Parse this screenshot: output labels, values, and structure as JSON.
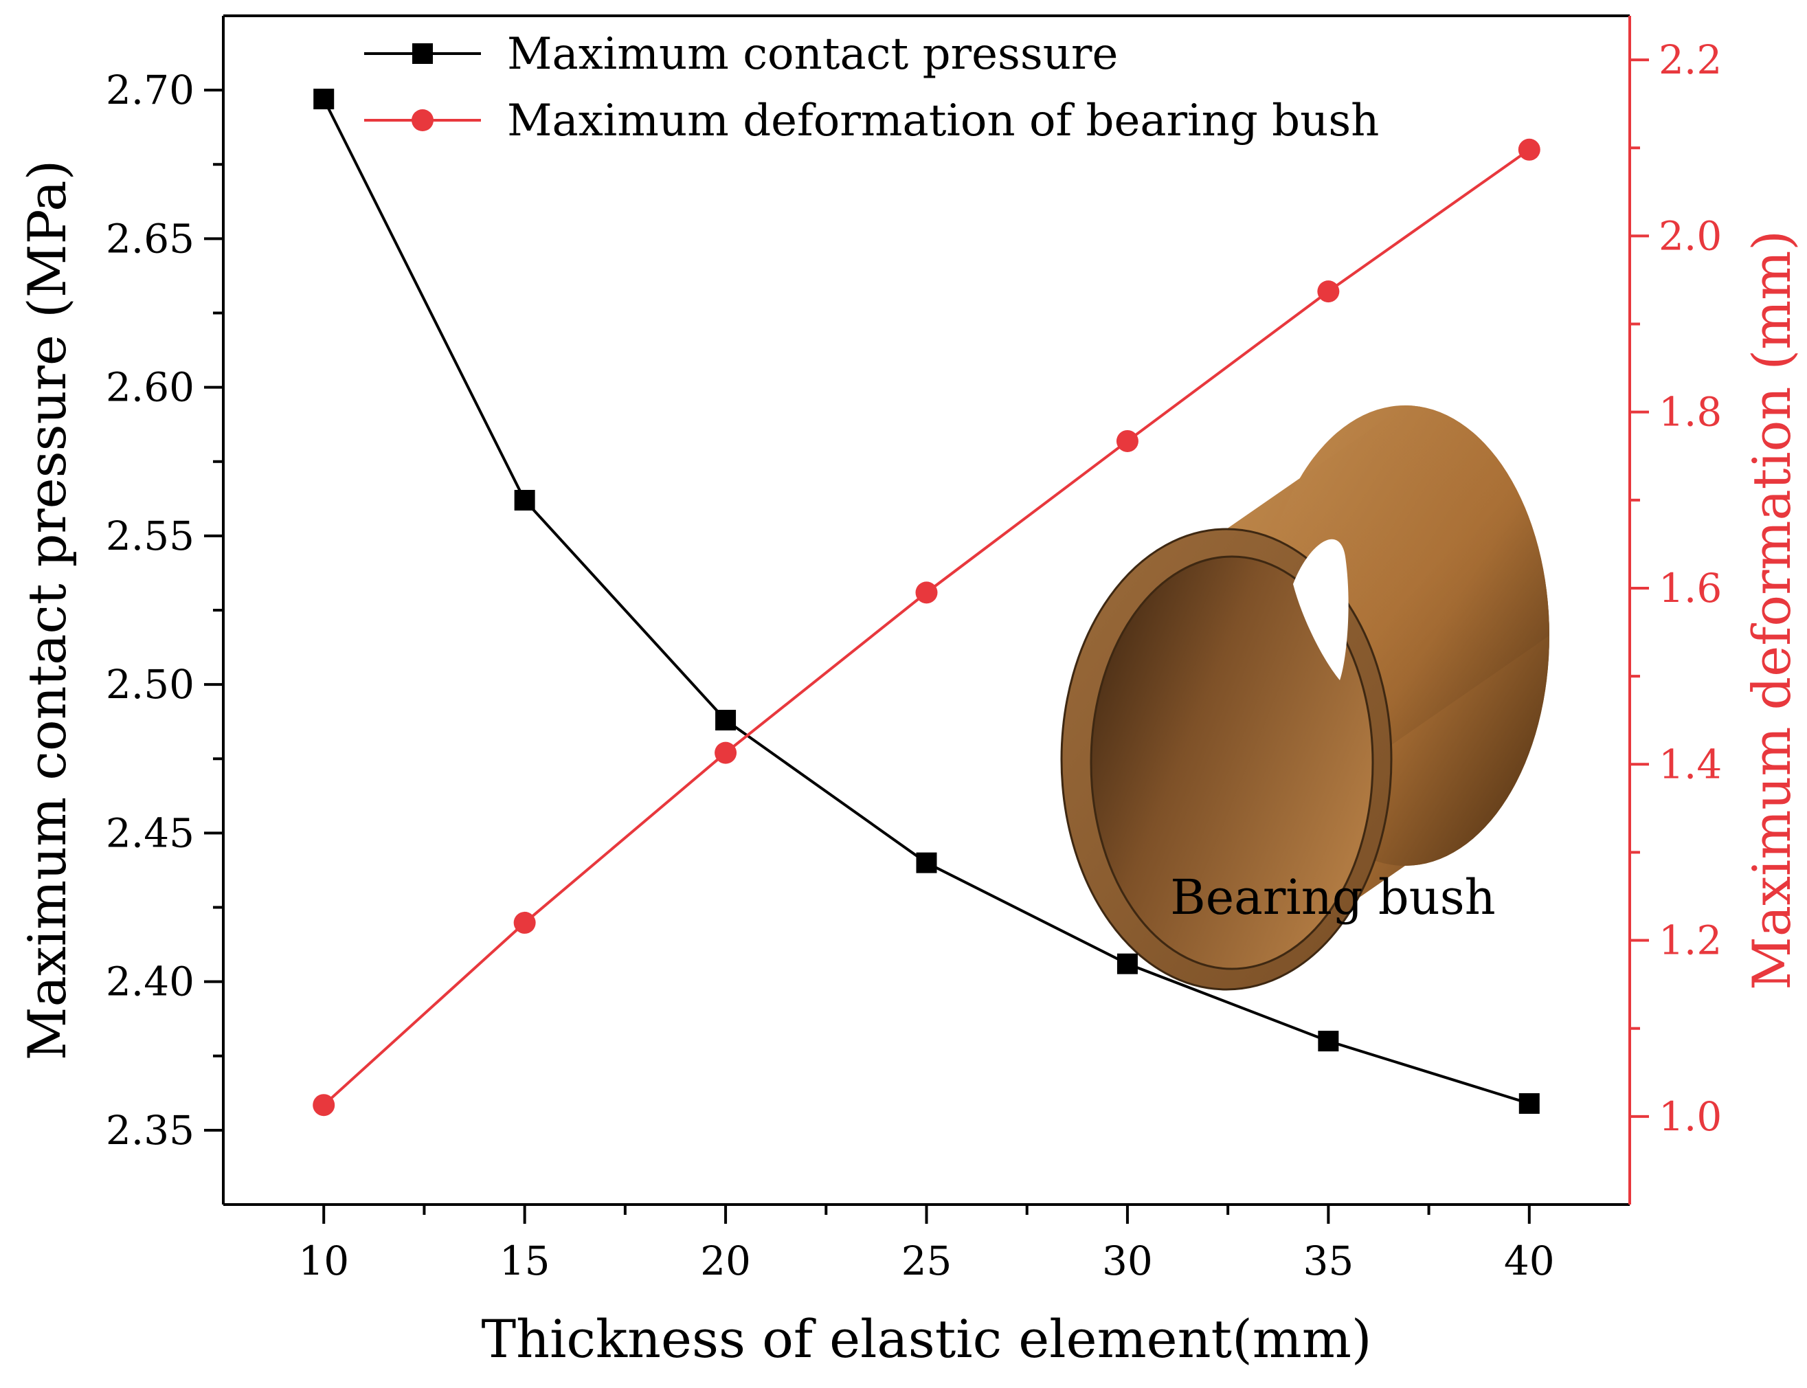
{
  "chart_data": {
    "type": "line",
    "x": [
      10,
      15,
      20,
      25,
      30,
      35,
      40
    ],
    "xlabel": "Thickness of elastic element(mm)",
    "xlim": [
      7.5,
      42.5
    ],
    "xticks": [
      "10",
      "15",
      "20",
      "25",
      "30",
      "35",
      "40"
    ],
    "ylabel": "Maximum contact pressure (MPa)",
    "ylim": [
      2.325,
      2.725
    ],
    "yticks": [
      "2.35",
      "2.40",
      "2.45",
      "2.50",
      "2.55",
      "2.60",
      "2.65",
      "2.70"
    ],
    "y2label": "Maximum deformation (mm)",
    "y2lim": [
      0.9,
      2.25
    ],
    "y2ticks": [
      "1.0",
      "1.2",
      "1.4",
      "1.6",
      "1.8",
      "2.0",
      "2.2"
    ],
    "grid": false,
    "legend_position": "top",
    "series": [
      {
        "name": "Maximum contact pressure",
        "axis": "left",
        "marker": "square",
        "color": "#000000",
        "values": [
          2.697,
          2.562,
          2.488,
          2.44,
          2.406,
          2.38,
          2.359
        ]
      },
      {
        "name": "Maximum deformation of bearing bush",
        "axis": "right",
        "marker": "circle",
        "color": "#e8383d",
        "values": [
          1.013,
          1.22,
          1.413,
          1.595,
          1.767,
          1.937,
          2.098
        ]
      }
    ],
    "annotations": [
      "Bearing bush"
    ]
  }
}
